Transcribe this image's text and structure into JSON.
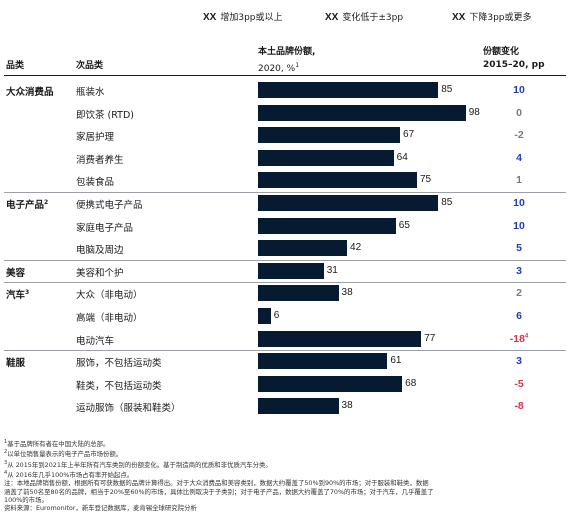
{
  "legend": [
    {
      "marker": "XX",
      "label": "增加3pp或以上",
      "color": "#1f3fb0"
    },
    {
      "marker": "XX",
      "label": "变化低于±3pp",
      "color": "#7a7a7a"
    },
    {
      "marker": "XX",
      "label": "下降3pp或更多",
      "color": "#d6324a"
    }
  ],
  "headers": {
    "category": "品类",
    "subcategory": "次品类",
    "share_line1": "本土品牌份额,",
    "share_line2": "2020, %",
    "share_sup": "1",
    "change_line1": "份额变化",
    "change_line2": "2015–20, pp"
  },
  "colors": {
    "bar": "#061b31",
    "up": "#1f3fb0",
    "flat": "#7a7a7a",
    "down": "#d6324a"
  },
  "chart_data": {
    "type": "bar",
    "orientation": "horizontal",
    "xlim": [
      0,
      100
    ],
    "groups": [
      {
        "name": "大众消费品",
        "sup": "",
        "rows": [
          {
            "label": "瓶装水",
            "share": 85,
            "change": "10",
            "trend": "up",
            "change_sup": ""
          },
          {
            "label": "即饮茶 (RTD)",
            "share": 98,
            "change": "0",
            "trend": "flat",
            "change_sup": ""
          },
          {
            "label": "家居护理",
            "share": 67,
            "change": "-2",
            "trend": "flat",
            "change_sup": ""
          },
          {
            "label": "消费者养生",
            "share": 64,
            "change": "4",
            "trend": "up",
            "change_sup": ""
          },
          {
            "label": "包装食品",
            "share": 75,
            "change": "1",
            "trend": "flat",
            "change_sup": ""
          }
        ]
      },
      {
        "name": "电子产品",
        "sup": "2",
        "rows": [
          {
            "label": "便携式电子产品",
            "share": 85,
            "change": "10",
            "trend": "up",
            "change_sup": ""
          },
          {
            "label": "家庭电子产品",
            "share": 65,
            "change": "10",
            "trend": "up",
            "change_sup": ""
          },
          {
            "label": "电脑及周边",
            "share": 42,
            "change": "5",
            "trend": "up",
            "change_sup": ""
          }
        ]
      },
      {
        "name": "美容",
        "sup": "",
        "rows": [
          {
            "label": "美容和个护",
            "share": 31,
            "change": "3",
            "trend": "up",
            "change_sup": ""
          }
        ]
      },
      {
        "name": "汽车",
        "sup": "3",
        "rows": [
          {
            "label": "大众（非电动）",
            "share": 38,
            "change": "2",
            "trend": "flat",
            "change_sup": ""
          },
          {
            "label": "高端（非电动）",
            "share": 6,
            "change": "6",
            "trend": "up",
            "change_sup": ""
          },
          {
            "label": "电动汽车",
            "share": 77,
            "change": "-18",
            "trend": "down",
            "change_sup": "4"
          }
        ]
      },
      {
        "name": "鞋服",
        "sup": "",
        "rows": [
          {
            "label": "服饰，不包括运动类",
            "share": 61,
            "change": "3",
            "trend": "up",
            "change_sup": ""
          },
          {
            "label": "鞋类，不包括运动类",
            "share": 68,
            "change": "-5",
            "trend": "down",
            "change_sup": ""
          },
          {
            "label": "运动服饰（服装和鞋类）",
            "share": 38,
            "change": "-8",
            "trend": "down",
            "change_sup": ""
          }
        ]
      }
    ]
  },
  "footnotes": [
    {
      "sup": "1",
      "text": "基于品牌所有者在中国大陆的总部。"
    },
    {
      "sup": "2",
      "text": "以单位销售量表示的电子产品市场份额。"
    },
    {
      "sup": "3",
      "text": "从 2015年到2021年上半年所有汽车类别的份额变化。基于制造商的优质和非优质汽车分类。"
    },
    {
      "sup": "4",
      "text": "从 2016年几乎100%市场占有率开始起点。"
    },
    {
      "sup": "",
      "text": "注：本地品牌销售份额，根据所有可获数据的品牌计算得出。对于大众消费品和美容类别，数据大约覆盖了50%到90%的市场；对于服装和鞋类，数据"
    },
    {
      "sup": "",
      "text": "涵盖了前50名至80名的品牌，相当于20%至60%的市场，具体比例取决于子类别；对于电子产品，数据大约覆盖了70%的市场；对于汽车，几乎覆盖了"
    },
    {
      "sup": "",
      "text": "100%的市场。"
    },
    {
      "sup": "",
      "text": "资料来源：Euromonitor，新车登记数据库，麦肯锡全球研究院分析"
    }
  ]
}
